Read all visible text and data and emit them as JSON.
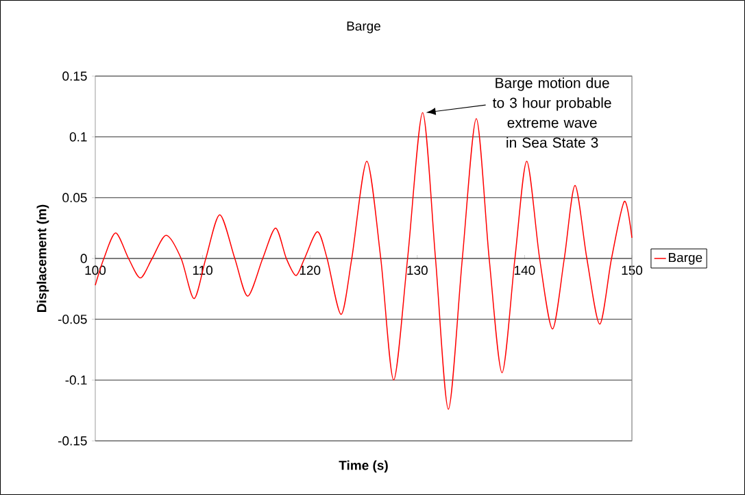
{
  "chart_data": {
    "type": "line",
    "title": "Barge",
    "xlabel": "Time (s)",
    "ylabel": "Displacement (m)",
    "x": [
      100.0,
      100.8,
      101.9,
      103.1,
      104.2,
      105.3,
      106.6,
      108.0,
      109.2,
      110.3,
      111.6,
      113.0,
      114.2,
      115.6,
      116.8,
      117.8,
      118.7,
      119.5,
      120.7,
      121.6,
      122.9,
      123.9,
      125.3,
      126.6,
      127.8,
      129.1,
      130.5,
      131.7,
      132.9,
      134.2,
      135.5,
      136.7,
      137.9,
      139.1,
      140.2,
      141.4,
      142.6,
      143.7,
      144.7,
      145.8,
      147.0,
      148.1,
      149.3,
      150.0
    ],
    "series": [
      {
        "name": "Barge",
        "color": "#ff0000",
        "values": [
          -0.022,
          0,
          0.021,
          0,
          -0.016,
          0,
          0.019,
          0,
          -0.033,
          0,
          0.036,
          0,
          -0.031,
          0,
          0.025,
          0,
          -0.014,
          0,
          0.022,
          0,
          -0.046,
          0,
          0.08,
          0,
          -0.1,
          0,
          0.12,
          0,
          -0.124,
          0,
          0.115,
          0,
          -0.094,
          0,
          0.08,
          0,
          -0.058,
          0,
          0.06,
          0,
          -0.054,
          0,
          0.047,
          0.017
        ]
      }
    ],
    "xlim": [
      100,
      150
    ],
    "xticks": [
      100,
      110,
      120,
      130,
      140,
      150
    ],
    "ylim": [
      -0.15,
      0.15
    ],
    "yticks": [
      -0.15,
      -0.1,
      -0.05,
      0,
      0.05,
      0.1,
      0.15
    ],
    "grid": "y",
    "legend": "right",
    "marker": "none",
    "line_style": "solid",
    "annotations": [
      "Barge motion due to 3 hour probable extreme wave in Sea State 3"
    ]
  }
}
